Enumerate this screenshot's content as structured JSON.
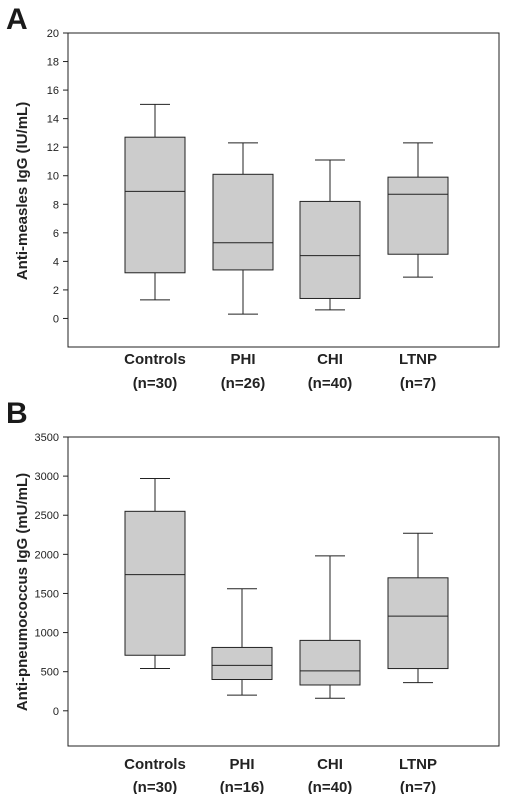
{
  "chart_data": [
    {
      "panel": "A",
      "type": "box",
      "ylabel": "Anti-measles IgG (IU/mL)",
      "ylim": [
        -2,
        20
      ],
      "yticks": [
        0,
        2,
        4,
        6,
        8,
        10,
        12,
        14,
        16,
        18,
        20
      ],
      "categories": [
        {
          "label": "Controls",
          "n_label": "(n=30)"
        },
        {
          "label": "PHI",
          "n_label": "(n=26)"
        },
        {
          "label": "CHI",
          "n_label": "(n=40)"
        },
        {
          "label": "LTNP",
          "n_label": "(n=7)"
        }
      ],
      "boxes": [
        {
          "min": 1.3,
          "q1": 3.2,
          "median": 8.9,
          "q3": 12.7,
          "max": 15.0
        },
        {
          "min": 0.3,
          "q1": 3.4,
          "median": 5.3,
          "q3": 10.1,
          "max": 12.3
        },
        {
          "min": 0.6,
          "q1": 1.4,
          "median": 4.4,
          "q3": 8.2,
          "max": 11.1
        },
        {
          "min": 2.9,
          "q1": 4.5,
          "median": 8.7,
          "q3": 9.9,
          "max": 12.3
        }
      ]
    },
    {
      "panel": "B",
      "type": "box",
      "ylabel": "Anti-pneumococcus IgG (mU/mL)",
      "ylim": [
        -450,
        3500
      ],
      "yticks": [
        0,
        500,
        1000,
        1500,
        2000,
        2500,
        3000,
        3500
      ],
      "categories": [
        {
          "label": "Controls",
          "n_label": "(n=30)"
        },
        {
          "label": "PHI",
          "n_label": "(n=16)"
        },
        {
          "label": "CHI",
          "n_label": "(n=40)"
        },
        {
          "label": "LTNP",
          "n_label": "(n=7)"
        }
      ],
      "boxes": [
        {
          "min": 540,
          "q1": 710,
          "median": 1740,
          "q3": 2550,
          "max": 2970
        },
        {
          "min": 200,
          "q1": 400,
          "median": 580,
          "q3": 810,
          "max": 1560
        },
        {
          "min": 160,
          "q1": 330,
          "median": 510,
          "q3": 900,
          "max": 1980
        },
        {
          "min": 360,
          "q1": 540,
          "median": 1210,
          "q3": 1700,
          "max": 2270
        }
      ]
    }
  ]
}
